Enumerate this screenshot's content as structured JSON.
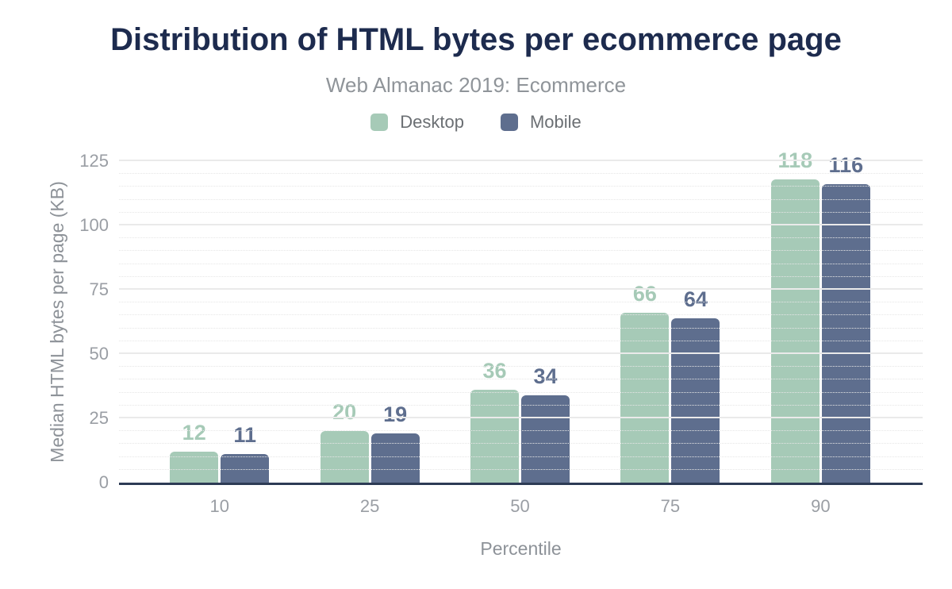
{
  "title": "Distribution of HTML bytes per ecommerce page",
  "subtitle": "Web Almanac 2019: Ecommerce",
  "chart_data": {
    "type": "bar",
    "categories": [
      "10",
      "25",
      "50",
      "75",
      "90"
    ],
    "series": [
      {
        "name": "Desktop",
        "color": "#a6cab7",
        "values": [
          12,
          20,
          36,
          66,
          118
        ]
      },
      {
        "name": "Mobile",
        "color": "#5e6e8e",
        "values": [
          11,
          19,
          34,
          64,
          116
        ]
      }
    ],
    "title": "Distribution of HTML bytes per ecommerce page",
    "subtitle": "Web Almanac 2019: Ecommerce",
    "xlabel": "Percentile",
    "ylabel": "Median HTML bytes per page (KB)",
    "ylim": [
      0,
      125
    ],
    "yticks": [
      0,
      25,
      50,
      75,
      100,
      125
    ],
    "ytick_step": 25,
    "minor_tick_step": 5,
    "grid": true,
    "legend_position": "top",
    "value_labels": true
  },
  "colors": {
    "title": "#1d2b4e",
    "subtitle": "#8f9499",
    "axis_line": "#2d3b55",
    "tick_label": "#9a9ea4",
    "major_grid": "#eaeaea",
    "minor_grid": "#e6e6e6",
    "background": "#ffffff"
  }
}
